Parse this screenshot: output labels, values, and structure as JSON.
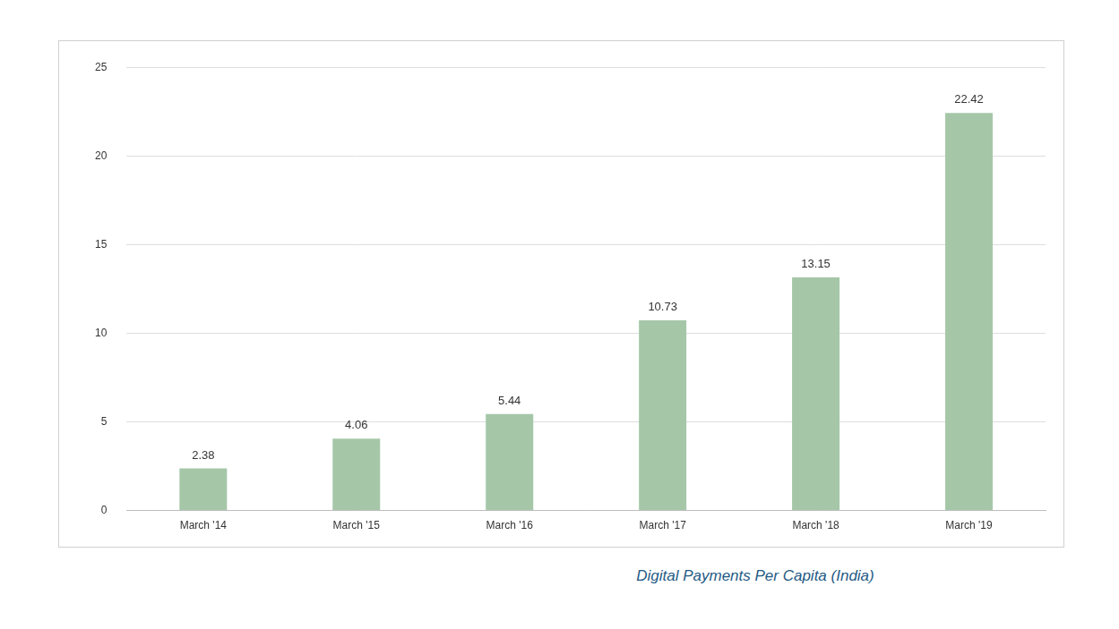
{
  "chart_data": {
    "type": "bar",
    "title": "Digital Payments Per Capita (India)",
    "categories": [
      "March '14",
      "March '15",
      "March '16",
      "March '17",
      "March '18",
      "March '19"
    ],
    "values": [
      2.38,
      4.06,
      5.44,
      10.73,
      13.15,
      22.42
    ],
    "color": "#a5c7a8",
    "ylim": [
      0,
      25
    ],
    "yticks": [
      0,
      5,
      10,
      15,
      20,
      25
    ],
    "grid": true,
    "data_labels": true
  }
}
